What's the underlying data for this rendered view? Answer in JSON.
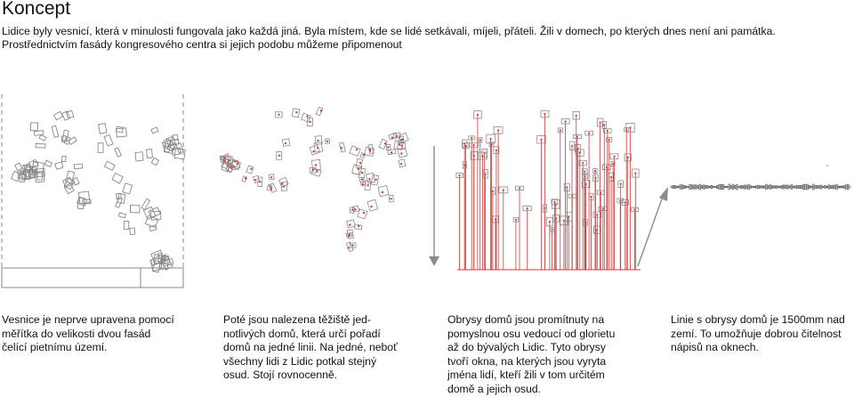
{
  "page": {
    "title": "Koncept",
    "intro_lines": [
      "Lidice byly vesnicí, která v minulosti fungovala jako každá jiná. Byla místem, kde se lidé setkávali, míjeli, přáteli. Žili v domech, po kterých dnes není ani památka.",
      "Prostřednictvím fasády kongresového centra si jejich podobu můžeme připomenout"
    ]
  },
  "steps": [
    {
      "caption_lines": [
        "Vesnice je neprve upravena pomocí",
        "měřítka do velikosti dvou fasád",
        "čelící pietnímu území."
      ]
    },
    {
      "caption_lines": [
        "Poté jsou nalezena těžiště jed-",
        "notlivých domů, která určí pořadí",
        "domů na jedné linii. Na jedné, neboť",
        "všechny lidi z Lidic potkal stejný",
        "osud. Stojí rovnocenně."
      ]
    },
    {
      "caption_lines": [
        "Obrysy domů jsou promítnuty na",
        "pomyslnou osu vedoucí od glorietu",
        "až do bývalých Lidic. Tyto obrysy",
        "tvoří okna, na kterých jsou vyryta",
        "jména lidí, kteří žili v tom určitém",
        "domě a jejich osud."
      ]
    },
    {
      "caption_lines": [
        "Linie s obrysy domů je 1500mm nad",
        "zemí. To umožňuje dobrou čitelnost",
        "nápisů na oknech."
      ]
    }
  ],
  "colors": {
    "accent_red": "#d23a3a",
    "outline_gray": "#777777",
    "arrow_gray": "#888888"
  }
}
